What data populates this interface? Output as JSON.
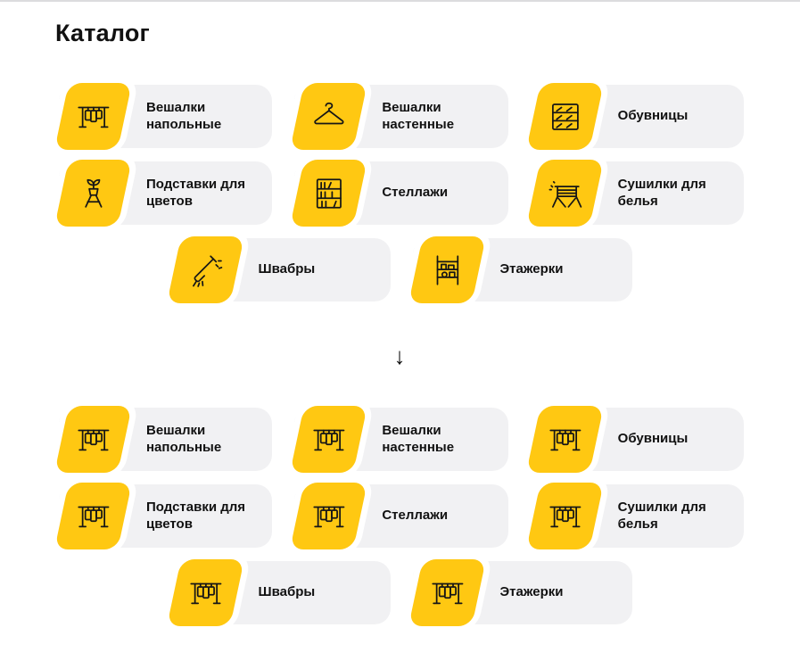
{
  "theme": {
    "accent": "#FFC812",
    "tile_bg": "#F1F1F3",
    "text": "#111111"
  },
  "page": {
    "title": "Каталог"
  },
  "divider": {
    "arrow_glyph": "↓"
  },
  "categories": [
    {
      "label": "Вешалки напольные",
      "icon": "floor-hanger-icon"
    },
    {
      "label": "Вешалки настенные",
      "icon": "wall-hanger-icon"
    },
    {
      "label": "Обувницы",
      "icon": "shoe-rack-icon"
    },
    {
      "label": "Подставки для цветов",
      "icon": "flower-stand-icon"
    },
    {
      "label": "Стеллажи",
      "icon": "shelving-icon"
    },
    {
      "label": "Сушилки для белья",
      "icon": "laundry-dryer-icon"
    },
    {
      "label": "Швабры",
      "icon": "mop-icon"
    },
    {
      "label": "Этажерки",
      "icon": "etagere-icon"
    }
  ],
  "after_state": {
    "icon": "floor-hanger-icon"
  }
}
